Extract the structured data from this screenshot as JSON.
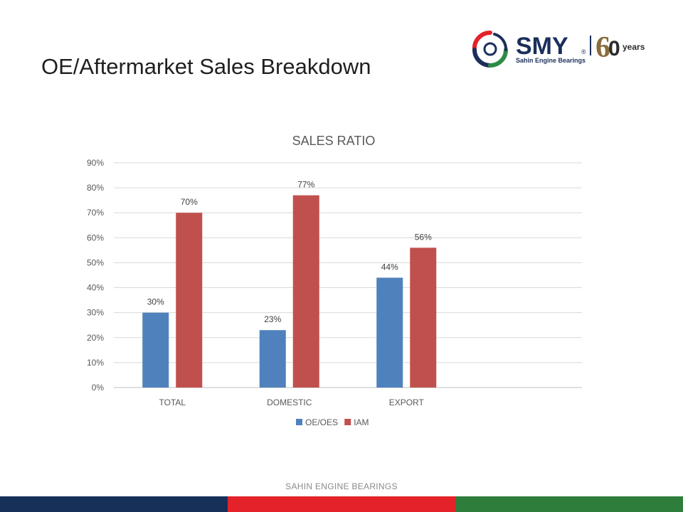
{
  "slide": {
    "title": "OE/Aftermarket Sales Breakdown",
    "footer": "SAHIN ENGINE BEARINGS"
  },
  "logo": {
    "brand": "SMY",
    "registered": "®",
    "tagline": "Sahin Engine Bearings",
    "anniversary_number": "6",
    "anniversary_zero": "0",
    "anniversary_word": "years",
    "colors": {
      "navy": "#1b2f5b",
      "red": "#e32229",
      "green": "#2e8b45",
      "gold": "#8a6d3b"
    }
  },
  "footer_colors": [
    "#17305a",
    "#e32229",
    "#2e7d3a"
  ],
  "chart_data": {
    "type": "bar",
    "title": "SALES RATIO",
    "categories": [
      "TOTAL",
      "DOMESTIC",
      "EXPORT"
    ],
    "series": [
      {
        "name": "OE/OES",
        "values": [
          30,
          23,
          44
        ],
        "labels": [
          "30%",
          "23%",
          "44%"
        ],
        "color": "#4f81bd"
      },
      {
        "name": "IAM",
        "values": [
          70,
          77,
          56
        ],
        "labels": [
          "70%",
          "77%",
          "56%"
        ],
        "color": "#c0504d"
      }
    ],
    "ylim": [
      0,
      90
    ],
    "yticks": [
      "0%",
      "10%",
      "20%",
      "30%",
      "40%",
      "50%",
      "60%",
      "70%",
      "80%",
      "90%"
    ],
    "grid": true,
    "legend": "bottom",
    "xlabel": "",
    "ylabel": ""
  }
}
